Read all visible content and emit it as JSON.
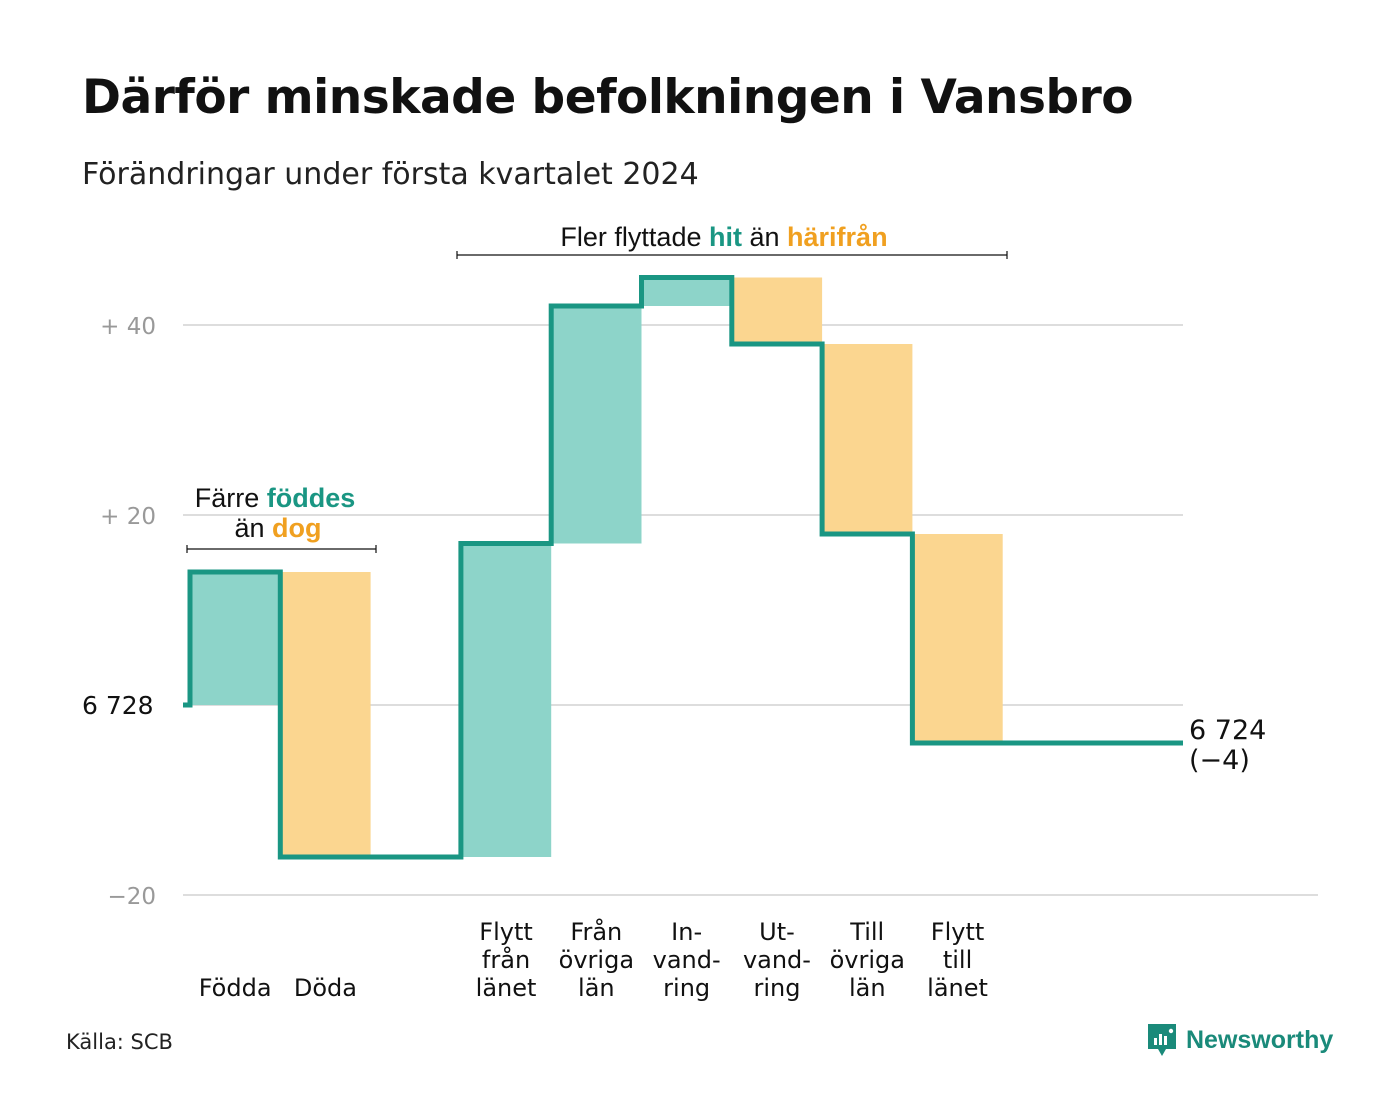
{
  "header": {
    "title": "Därför minskade befolkningen i Vansbro",
    "subtitle": "Förändringar under första kvartalet 2024"
  },
  "footer": {
    "source": "Källa: SCB",
    "brand": "Newsworthy",
    "brand_icon": "newsworthy-logo-icon"
  },
  "colors": {
    "plus": "#8dd4c9",
    "minus": "#fbd690",
    "line": "#1a9683",
    "accent_plus": "#1a9683",
    "accent_minus": "#f0a020",
    "grid": "#dddddd",
    "tick": "#999999"
  },
  "chart_data": {
    "type": "waterfall",
    "start_value": 6728,
    "start_label": "6 728",
    "end_label": "6 724",
    "end_change_label": "(−4)",
    "y_axis": {
      "min": -24,
      "max": 48,
      "ticks": [
        {
          "value": 40,
          "label": "+ 40"
        },
        {
          "value": 20,
          "label": "+ 20"
        },
        {
          "value": 0,
          "label": ""
        },
        {
          "value": -20,
          "label": "−20"
        }
      ]
    },
    "steps": [
      {
        "label": "Födda",
        "change": 14
      },
      {
        "label": "Döda",
        "change": -30
      },
      {
        "label": "",
        "change": 0
      },
      {
        "label": "Flytt\nfrån\nlänet",
        "change": 33
      },
      {
        "label": "Från\növriga\nlän",
        "change": 25
      },
      {
        "label": "In-\nvand-\nring",
        "change": 3
      },
      {
        "label": "Ut-\nvand-\nring",
        "change": -7
      },
      {
        "label": "Till\növriga\nlän",
        "change": -20
      },
      {
        "label": "Flytt\ntill\nlänet",
        "change": -22
      }
    ],
    "annotations": [
      {
        "prefix": "Färre",
        "plus_word": "föddes",
        "middle": "än",
        "minus_word": "dog"
      },
      {
        "prefix": "Fler flyttade",
        "plus_word": "hit",
        "middle": "än",
        "minus_word": "härifrån"
      }
    ]
  }
}
